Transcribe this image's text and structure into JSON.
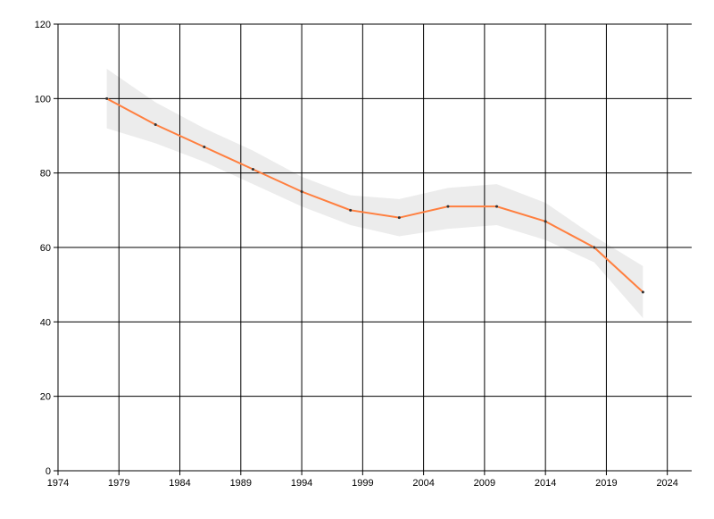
{
  "chart_data": {
    "type": "line",
    "x": [
      1978,
      1982,
      1986,
      1990,
      1994,
      1998,
      2002,
      2006,
      2010,
      2014,
      2018,
      2022
    ],
    "values": [
      100,
      93,
      87,
      81,
      75,
      70,
      68,
      71,
      71,
      67,
      60,
      48
    ],
    "color": "#ff7f3f",
    "band": {
      "upper": [
        108,
        99,
        92,
        86,
        79,
        74,
        73,
        76,
        77,
        72,
        63,
        55
      ],
      "lower": [
        92,
        88,
        83,
        77,
        71,
        66,
        63,
        65,
        66,
        62,
        56,
        41
      ],
      "color": "#ececec"
    },
    "xlim": [
      1974,
      2026
    ],
    "xticks": [
      1974,
      1979,
      1984,
      1989,
      1994,
      1999,
      2004,
      2009,
      2014,
      2019,
      2024
    ],
    "ylim": [
      0,
      120
    ],
    "yticks": [
      0,
      20,
      40,
      60,
      80,
      100,
      120
    ],
    "grid": true
  }
}
